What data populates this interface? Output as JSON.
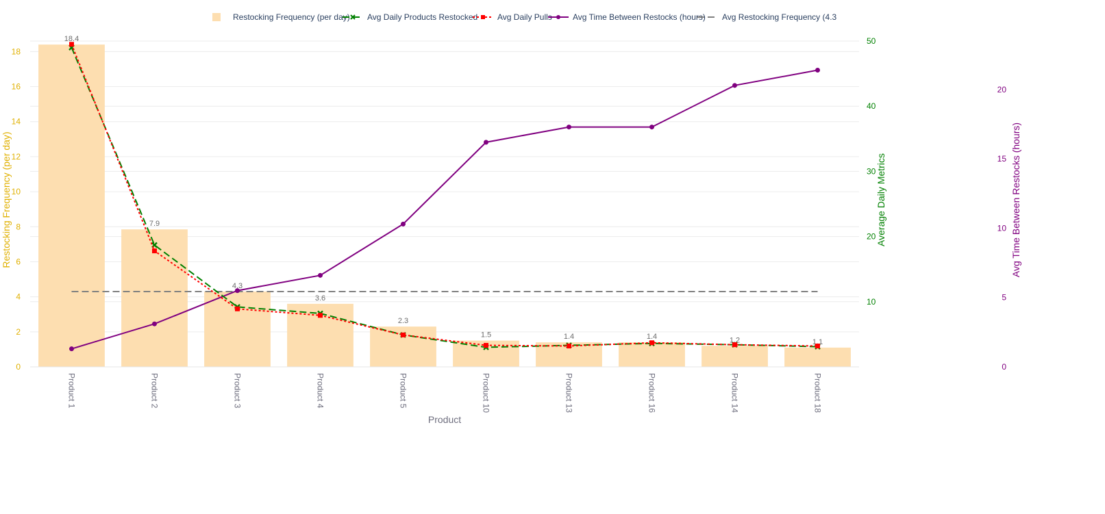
{
  "chart_data": {
    "type": "bar",
    "xlabel": "Product",
    "ylabel": "Restocking Frequency (per day)",
    "y2label": "Average Daily Metrics",
    "y3label": "Avg Time Between Restocks (hours)",
    "categories": [
      "Product 1",
      "Product 2",
      "Product 3",
      "Product 4",
      "Product 5",
      "Product 10",
      "Product 13",
      "Product 16",
      "Product 14",
      "Product 18"
    ],
    "ylim": [
      0,
      18.6
    ],
    "y2lim": [
      0,
      50
    ],
    "y3lim": [
      0,
      23.5
    ],
    "yticks": [
      0,
      2,
      4,
      6,
      8,
      10,
      12,
      14,
      16,
      18
    ],
    "y2ticks": [
      10,
      20,
      30,
      40,
      50
    ],
    "y3ticks": [
      0,
      5,
      10,
      15,
      20
    ],
    "grid": true,
    "legend_position": "top",
    "bar_labels": [
      "18.4",
      "7.9",
      "4.3",
      "3.6",
      "2.3",
      "1.5",
      "1.4",
      "1.4",
      "1.2",
      "1.1"
    ],
    "series": [
      {
        "name": "Restocking Frequency (per day)",
        "type": "bar",
        "axis": "y",
        "color": "#fddeb0",
        "values": [
          18.4,
          7.85,
          4.3,
          3.6,
          2.3,
          1.5,
          1.4,
          1.4,
          1.2,
          1.1
        ]
      },
      {
        "name": "Avg Daily Products Restocked",
        "type": "line",
        "axis": "y2",
        "color": "#008000",
        "dash": "dash",
        "marker": "x",
        "values": [
          49.0,
          18.7,
          9.2,
          8.2,
          4.9,
          3.0,
          3.3,
          3.6,
          3.4,
          3.1
        ]
      },
      {
        "name": "Avg Daily Pulls",
        "type": "line",
        "axis": "y2",
        "color": "#ff0000",
        "dash": "dot",
        "marker": "square",
        "values": [
          49.5,
          17.8,
          8.9,
          7.9,
          4.9,
          3.3,
          3.2,
          3.7,
          3.4,
          3.2
        ]
      },
      {
        "name": "Avg Time Between Restocks (hours)",
        "type": "line",
        "axis": "y3",
        "color": "#800080",
        "dash": "solid",
        "marker": "circle",
        "values": [
          1.3,
          3.1,
          5.5,
          6.6,
          10.3,
          16.2,
          17.3,
          17.3,
          20.3,
          21.4
        ]
      },
      {
        "name": "Avg Restocking Frequency (4.3",
        "type": "hline",
        "axis": "y",
        "color": "#808080",
        "dash": "dash",
        "value": 4.3
      }
    ]
  }
}
